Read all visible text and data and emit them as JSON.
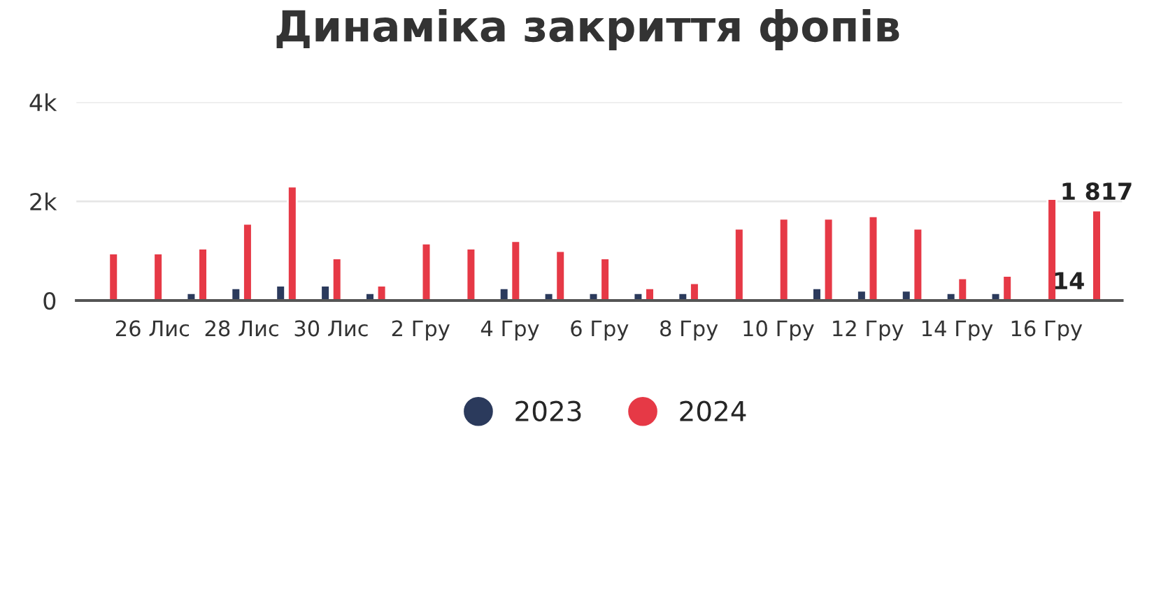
{
  "chart_data": {
    "type": "bar",
    "title": "Динаміка закриття фопів",
    "categories": [
      null,
      "26 Лис",
      null,
      "28 Лис",
      null,
      "30 Лис",
      null,
      "2 Гру",
      null,
      "4 Гру",
      null,
      "6 Гру",
      null,
      "8 Гру",
      null,
      "10 Гру",
      null,
      "12 Гру",
      null,
      "14 Гру",
      null,
      "16 Гру",
      null
    ],
    "series": [
      {
        "name": "2023",
        "color": "#2b3a5c",
        "values": [
          null,
          null,
          150,
          250,
          300,
          300,
          150,
          null,
          null,
          250,
          150,
          150,
          150,
          150,
          null,
          null,
          250,
          200,
          200,
          150,
          150,
          null,
          14
        ],
        "value_labels": [
          null,
          null,
          null,
          null,
          null,
          null,
          null,
          null,
          null,
          null,
          null,
          null,
          null,
          null,
          null,
          null,
          null,
          null,
          null,
          null,
          null,
          null,
          "14"
        ]
      },
      {
        "name": "2024",
        "color": "#e63946",
        "values": [
          950,
          950,
          1050,
          1550,
          2300,
          850,
          300,
          1150,
          1050,
          1200,
          1000,
          850,
          250,
          350,
          1450,
          1650,
          1650,
          1700,
          1450,
          450,
          500,
          2050,
          1817
        ],
        "value_labels": [
          null,
          null,
          null,
          null,
          null,
          null,
          null,
          null,
          null,
          null,
          null,
          null,
          null,
          null,
          null,
          null,
          null,
          null,
          null,
          null,
          null,
          null,
          "1 817"
        ]
      }
    ],
    "ylim": [
      0,
      4000
    ],
    "yticks": [
      0,
      {
        "value": 2000,
        "label": "2k"
      },
      {
        "value": 4000,
        "label": "4k"
      }
    ],
    "grid": "y",
    "legend": "bottom"
  }
}
